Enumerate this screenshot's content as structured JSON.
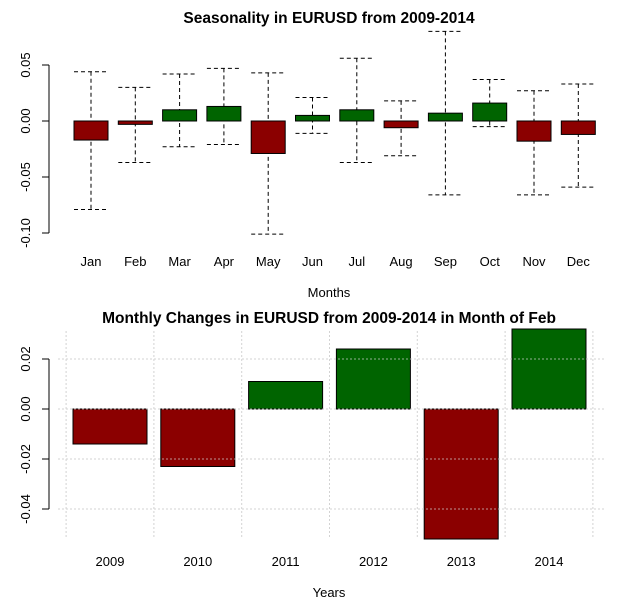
{
  "colors": {
    "positive": "#006400",
    "negative": "#8B0000",
    "grid": "#d3d3d3"
  },
  "chart_data": [
    {
      "type": "bar",
      "title": "Seasonality in EURUSD from 2009-2014",
      "xlabel": "Months",
      "ylabel": "",
      "categories": [
        "Jan",
        "Feb",
        "Mar",
        "Apr",
        "May",
        "Jun",
        "Jul",
        "Aug",
        "Sep",
        "Oct",
        "Nov",
        "Dec"
      ],
      "values": [
        -0.017,
        -0.003,
        0.01,
        0.013,
        -0.029,
        0.005,
        0.01,
        -0.006,
        0.007,
        0.016,
        -0.018,
        -0.012
      ],
      "error_bars": {
        "upper": [
          0.044,
          0.03,
          0.042,
          0.047,
          0.043,
          0.021,
          0.056,
          0.018,
          0.08,
          0.037,
          0.027,
          0.033
        ],
        "lower": [
          -0.079,
          -0.037,
          -0.023,
          -0.021,
          -0.101,
          -0.011,
          -0.037,
          -0.031,
          -0.066,
          -0.005,
          -0.066,
          -0.059
        ]
      },
      "yticks": [
        "0.05",
        "0.00",
        "-0.05",
        "-0.10"
      ],
      "ylim": [
        -0.105,
        0.085
      ],
      "grid": false
    },
    {
      "type": "bar",
      "title": "Monthly Changes in EURUSD from 2009-2014 in Month of Feb",
      "xlabel": "Years",
      "ylabel": "",
      "categories": [
        "2009",
        "2010",
        "2011",
        "2012",
        "2013",
        "2014"
      ],
      "values": [
        -0.014,
        -0.023,
        0.011,
        0.024,
        -0.052,
        0.032
      ],
      "yticks": [
        "0.02",
        "0.00",
        "-0.02",
        "-0.04"
      ],
      "ylim": [
        -0.052,
        0.032
      ],
      "grid": true
    }
  ]
}
